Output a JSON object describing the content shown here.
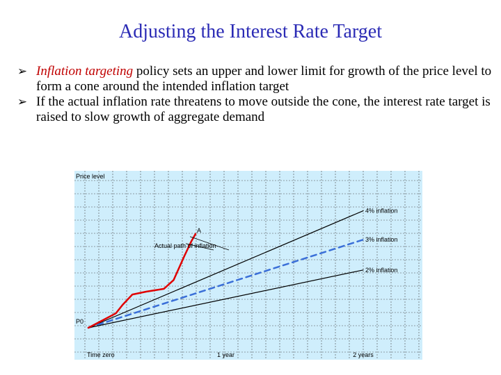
{
  "title": "Adjusting the Interest Rate Target",
  "bullets": [
    {
      "emphasis": "Inflation targeting",
      "text": " policy sets an upper and lower limit for growth of the price level to form a cone around the intended inflation target"
    },
    {
      "emphasis": "",
      "text": "If the actual inflation rate threatens to move outside the cone, the interest rate target is raised to slow growth of aggregate demand"
    }
  ],
  "chart_data": {
    "type": "line",
    "ylabel": "Price level",
    "y_origin_label": "P0",
    "x_ticks": [
      "Time zero",
      "1 year",
      "2 years"
    ],
    "point_label": "A",
    "annotation": "Actual path of inflation",
    "grid": true,
    "series": [
      {
        "name": "4% inflation",
        "style": "solid",
        "color": "#000000",
        "x": [
          0,
          2
        ],
        "y": [
          0.0,
          0.81
        ]
      },
      {
        "name": "3% inflation",
        "style": "dashed",
        "color": "#3a6fd8",
        "x": [
          0,
          2
        ],
        "y": [
          0.0,
          0.61
        ]
      },
      {
        "name": "2% inflation",
        "style": "solid",
        "color": "#000000",
        "x": [
          0,
          2
        ],
        "y": [
          0.0,
          0.4
        ]
      },
      {
        "name": "",
        "style": "solid",
        "color": "#e00000",
        "x": [
          0,
          0.1,
          0.2,
          0.25,
          0.32,
          0.42,
          0.55,
          0.62,
          0.7,
          0.75,
          0.78
        ],
        "y": [
          0.0,
          0.05,
          0.1,
          0.16,
          0.23,
          0.25,
          0.27,
          0.33,
          0.5,
          0.6,
          0.65
        ]
      }
    ]
  }
}
